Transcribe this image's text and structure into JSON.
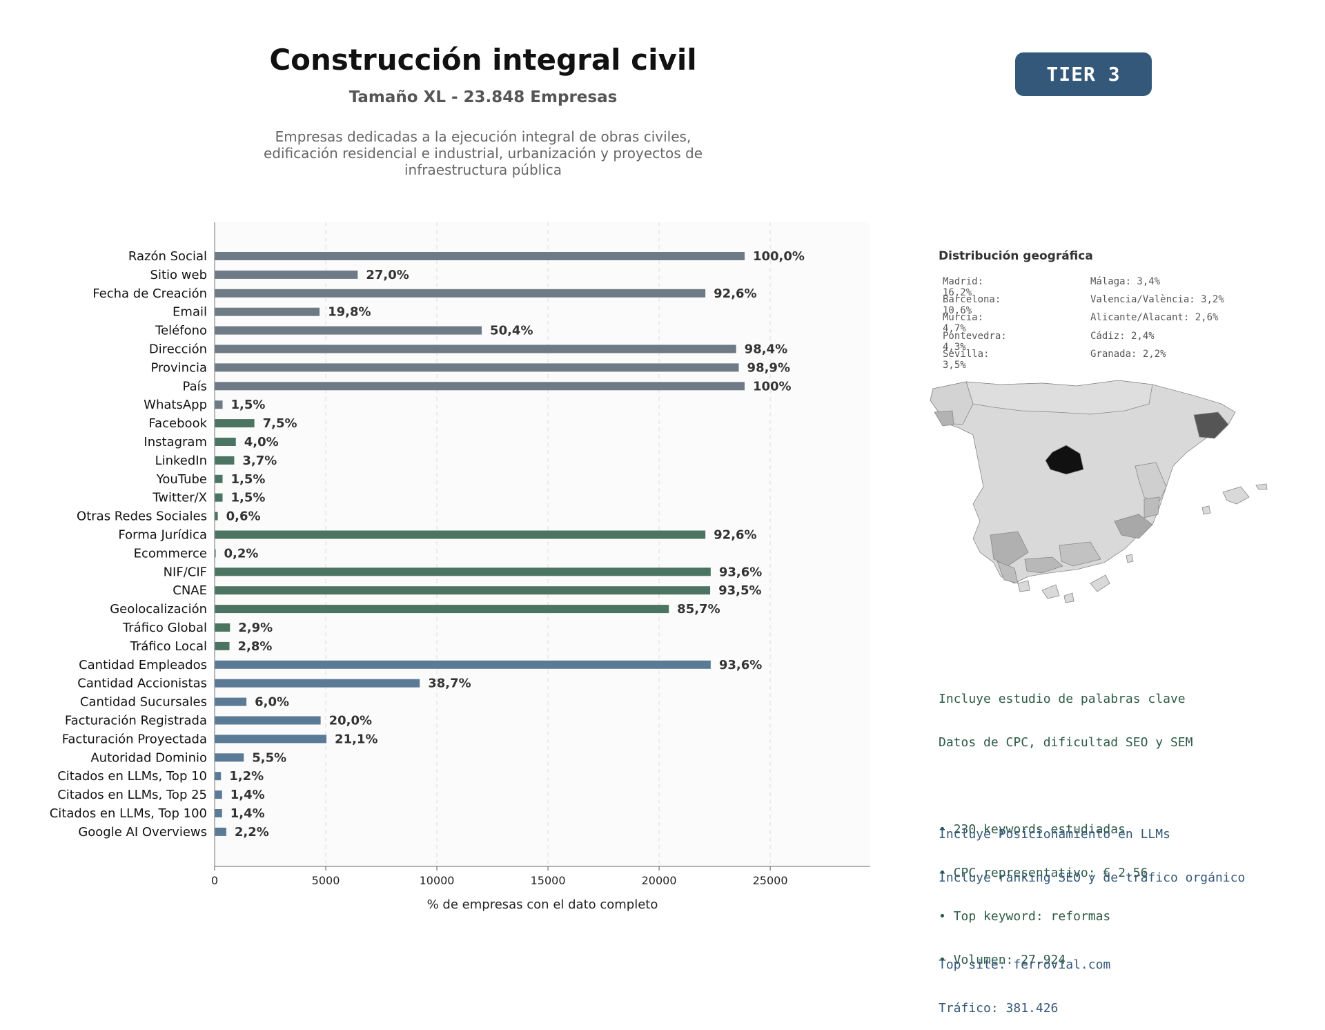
{
  "header": {
    "title": "Construcción integral civil",
    "subtitle": "Tamaño XL - 23.848 Empresas",
    "description": "Empresas dedicadas a la ejecución integral de obras civiles, edificación residencial e industrial, urbanización y proyectos de infraestructura pública",
    "tier_badge": "TIER 3"
  },
  "chart_data": {
    "type": "bar",
    "orientation": "horizontal",
    "xlabel": "% de empresas con el dato completo",
    "ylabel": "",
    "xlim": [
      0,
      29500
    ],
    "xticks": [
      0,
      5000,
      10000,
      15000,
      20000,
      25000
    ],
    "grid": "vertical dashed",
    "total": 23848,
    "colors": {
      "basic": "#6e7a86",
      "digital": "#4b7562",
      "business": "#5a7a96"
    },
    "categories": [
      "Razón Social",
      "Sitio web",
      "Fecha de Creación",
      "Email",
      "Teléfono",
      "Dirección",
      "Provincia",
      "País",
      "WhatsApp",
      "Facebook",
      "Instagram",
      "LinkedIn",
      "YouTube",
      "Twitter/X",
      "Otras Redes Sociales",
      "Forma Jurídica",
      "Ecommerce",
      "NIF/CIF",
      "CNAE",
      "Geolocalización",
      "Tráfico Global",
      "Tráfico Local",
      "Cantidad Empleados",
      "Cantidad Accionistas",
      "Cantidad Sucursales",
      "Facturación Registrada",
      "Facturación Proyectada",
      "Autoridad Dominio",
      "Citados en LLMs, Top 10",
      "Citados en LLMs, Top 25",
      "Citados en LLMs, Top 100",
      "Google AI Overviews"
    ],
    "values": [
      23848,
      6439,
      22083,
      4722,
      12019,
      23466,
      23586,
      23848,
      358,
      1789,
      954,
      882,
      358,
      358,
      143,
      22083,
      48,
      22322,
      22298,
      20438,
      692,
      668,
      22322,
      9229,
      1431,
      4770,
      5032,
      1312,
      286,
      334,
      334,
      525
    ],
    "labels": [
      "100,0%",
      "27,0%",
      "92,6%",
      "19,8%",
      "50,4%",
      "98,4%",
      "98,9%",
      "100%",
      "1,5%",
      "7,5%",
      "4,0%",
      "3,7%",
      "1,5%",
      "1,5%",
      "0,6%",
      "92,6%",
      "0,2%",
      "93,6%",
      "93,5%",
      "85,7%",
      "2,9%",
      "2,8%",
      "93,6%",
      "38,7%",
      "6,0%",
      "20,0%",
      "21,1%",
      "5,5%",
      "1,2%",
      "1,4%",
      "1,4%",
      "2,2%"
    ],
    "groups": [
      "basic",
      "basic",
      "basic",
      "basic",
      "basic",
      "basic",
      "basic",
      "basic",
      "basic",
      "digital",
      "digital",
      "digital",
      "digital",
      "digital",
      "digital",
      "digital",
      "digital",
      "digital",
      "digital",
      "digital",
      "digital",
      "digital",
      "business",
      "business",
      "business",
      "business",
      "business",
      "business",
      "business",
      "business",
      "business",
      "business"
    ]
  },
  "geo": {
    "title": "Distribución geográfica",
    "left": [
      "Madrid: 16,2%",
      "Barcelona: 10,6%",
      "Murcia: 4,7%",
      "Pontevedra: 4,3%",
      "Sevilla: 3,5%"
    ],
    "right": [
      "Málaga: 3,4%",
      "Valencia/València: 3,2%",
      "Alicante/Alacant: 2,6%",
      "Cádiz: 2,4%",
      "Granada: 2,2%"
    ],
    "map_colors": {
      "base": "#d9d9d9",
      "madrid": "#111111",
      "barcelona": "#555555",
      "mid": "#aaaaaa",
      "light": "#c4c4c4"
    }
  },
  "seo": {
    "lines": [
      "Incluye estudio de palabras clave",
      "Datos de CPC, dificultad SEO y SEM",
      "",
      "• 230 keywords estudiadas",
      "• CPC representativo: € 2.56",
      "• Top keyword: reformas",
      "• Volumen: 27.924"
    ]
  },
  "llm": {
    "lines": [
      "Incluye Posicionamiento en LLMs",
      "Incluye ranking SEO y de tráfico orgánico",
      "",
      "Top site: ferrovial.com",
      "Tráfico: 381.426"
    ]
  }
}
